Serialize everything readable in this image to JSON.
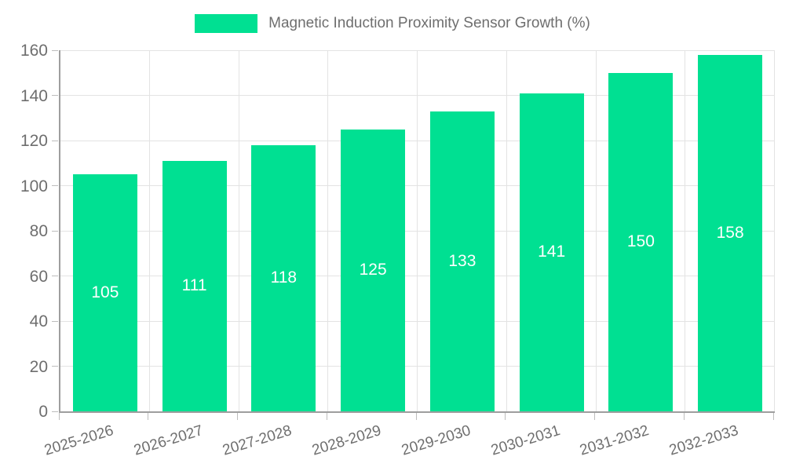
{
  "chart_data": {
    "type": "bar",
    "title": "Magnetic Induction Proximity Sensor Growth (%)",
    "categories": [
      "2025-2026",
      "2026-2027",
      "2027-2028",
      "2028-2029",
      "2029-2030",
      "2030-2031",
      "2031-2032",
      "2032-2033"
    ],
    "values": [
      105,
      111,
      118,
      125,
      133,
      141,
      150,
      158
    ],
    "xlabel": "",
    "ylabel": "",
    "ylim": [
      0,
      160
    ],
    "ytick_step": 20,
    "ytick_labels": [
      "0",
      "20",
      "40",
      "60",
      "80",
      "100",
      "120",
      "140",
      "160"
    ],
    "grid": true,
    "legend_position": "top",
    "value_labels_inside_bars": true,
    "colors": {
      "bar": "#00E092",
      "value_label": "#FFFFFF",
      "axis_text": "#6E6E6E",
      "grid_line": "#E3E3E3",
      "axis_line": "#9E9E9E",
      "tick": "#BDBDBD",
      "background": "#FFFFFF"
    }
  }
}
